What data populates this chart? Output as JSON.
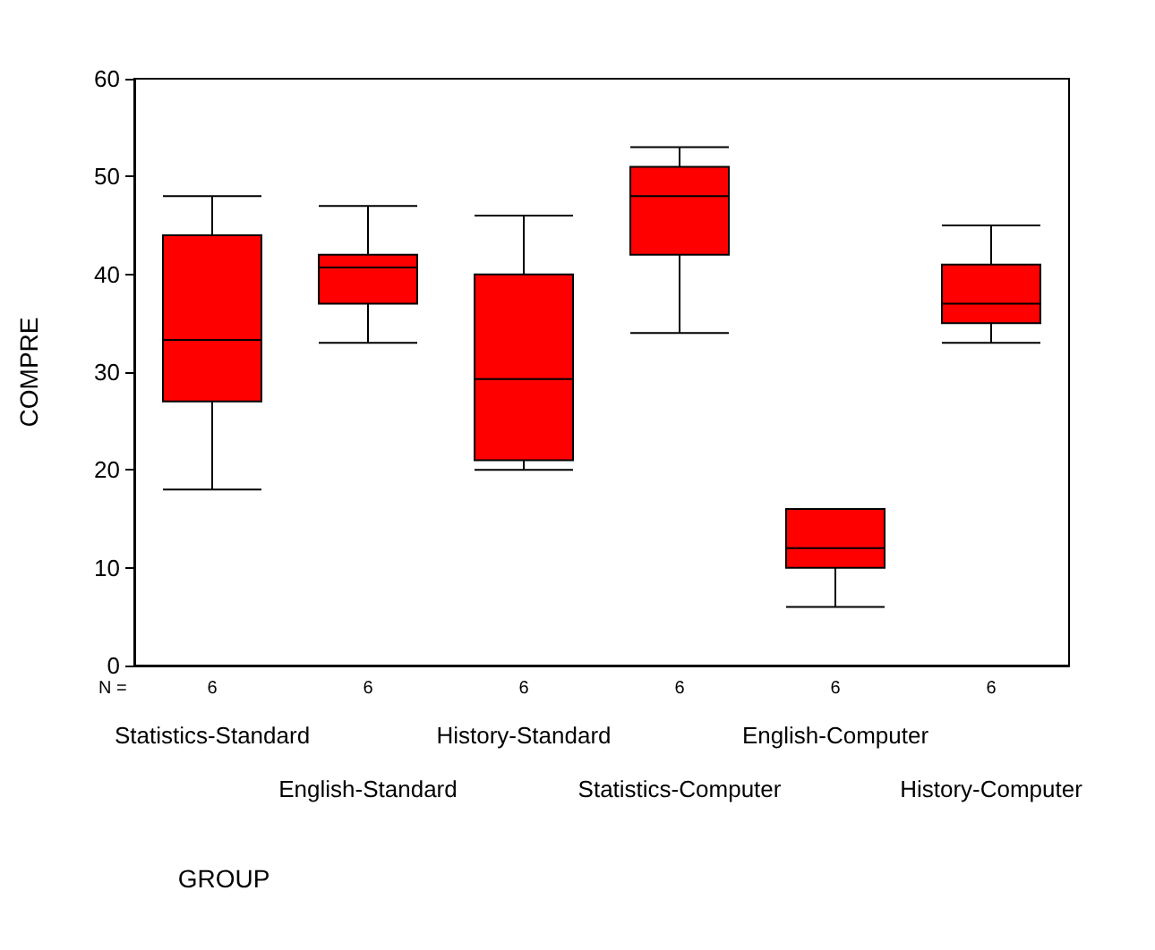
{
  "chart_data": {
    "type": "box",
    "xlabel": "GROUP",
    "ylabel": "COMPRE",
    "categories": [
      "Statistics-Standard",
      "English-Standard",
      "History-Standard",
      "Statistics-Computer",
      "English-Computer",
      "History-Computer"
    ],
    "series": [
      {
        "color": "#ff0000",
        "boxes": [
          {
            "low": 18,
            "q1": 27,
            "median": 33.3,
            "q3": 44,
            "high": 48
          },
          {
            "low": 33,
            "q1": 37,
            "median": 40.7,
            "q3": 42,
            "high": 47
          },
          {
            "low": 20,
            "q1": 21,
            "median": 29.3,
            "q3": 40,
            "high": 46
          },
          {
            "low": 34,
            "q1": 42,
            "median": 48,
            "q3": 51,
            "high": 53
          },
          {
            "low": 6,
            "q1": 10,
            "median": 12,
            "q3": 16,
            "high": 16
          },
          {
            "low": 33,
            "q1": 35,
            "median": 37,
            "q3": 41,
            "high": 45
          }
        ]
      }
    ],
    "ylim": [
      0,
      60
    ],
    "yticks": [
      0,
      10,
      20,
      30,
      40,
      50,
      60
    ],
    "grid": false,
    "annotations": [
      "N =",
      "6",
      "6",
      "6",
      "6",
      "6",
      "6"
    ]
  }
}
